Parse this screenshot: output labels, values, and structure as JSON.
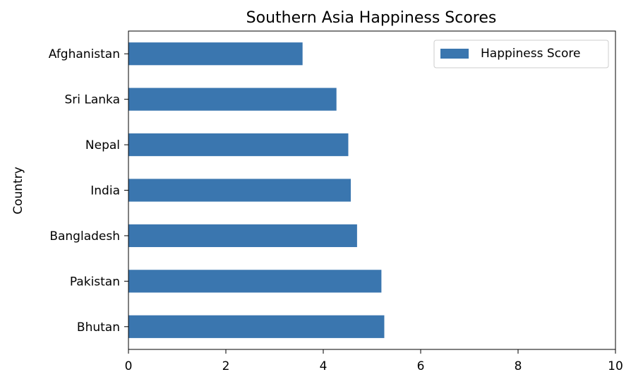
{
  "chart_data": {
    "type": "bar",
    "orientation": "horizontal",
    "title": "Southern Asia Happiness Scores",
    "xlabel": "",
    "ylabel": "Country",
    "categories": [
      "Afghanistan",
      "Sri Lanka",
      "Nepal",
      "India",
      "Bangladesh",
      "Pakistan",
      "Bhutan"
    ],
    "series": [
      {
        "name": "Happiness Score",
        "color": "#3a76af",
        "values": [
          3.575,
          4.271,
          4.514,
          4.565,
          4.694,
          5.194,
          5.253
        ]
      }
    ],
    "xlim": [
      0,
      10
    ],
    "xticks": [
      "0",
      "2",
      "4",
      "6",
      "8",
      "10"
    ],
    "grid": false,
    "legend_position": "top-right"
  }
}
